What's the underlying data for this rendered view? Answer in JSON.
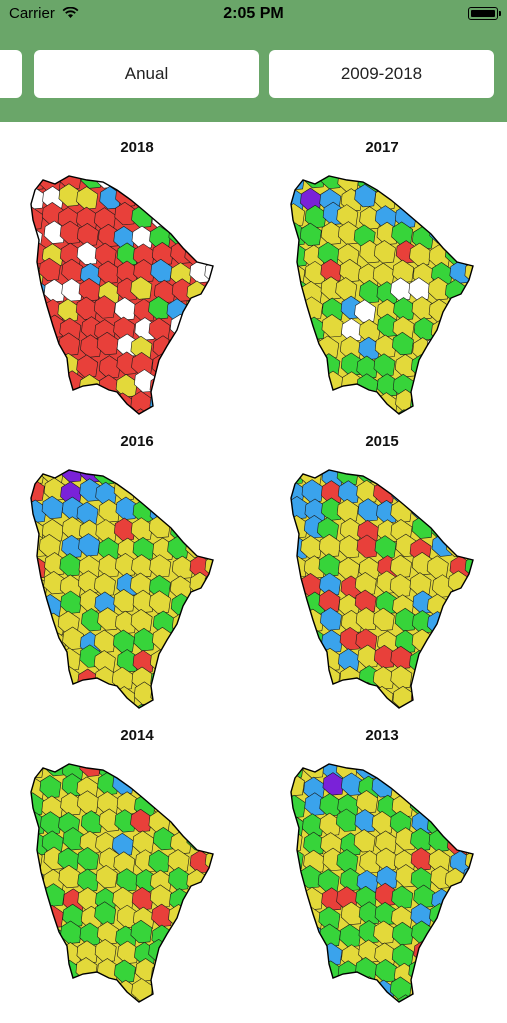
{
  "status": {
    "carrier": "Carrier",
    "time": "2:05 PM"
  },
  "selectors": {
    "partial": "",
    "period": "Anual",
    "range": "2009-2018"
  },
  "colors": {
    "header": "#6aa669",
    "red": "#e8403a",
    "yellow": "#e3d93a",
    "green": "#37d43a",
    "blue": "#3aa3ec",
    "purple": "#7a22d8",
    "navy": "#0e3b5a",
    "white": "#ffffff",
    "border": "#1a1a1a"
  },
  "maps": [
    {
      "year": "2018",
      "dominant": "red"
    },
    {
      "year": "2017",
      "dominant": "yellow"
    },
    {
      "year": "2016",
      "dominant": "yellow"
    },
    {
      "year": "2015",
      "dominant": "yellow"
    },
    {
      "year": "2014",
      "dominant": "yellow"
    },
    {
      "year": "2013",
      "dominant": "yellow"
    }
  ]
}
